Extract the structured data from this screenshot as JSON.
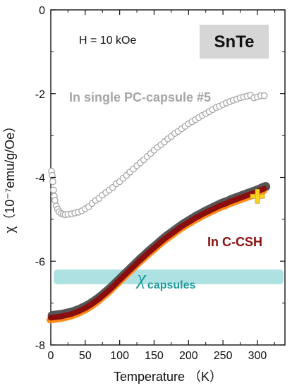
{
  "chart_data": {
    "type": "scatter",
    "xlabel": "Temperature （K）",
    "ylabel": "χ（10⁻⁷emu/g/Oe）",
    "xlim": [
      0,
      340
    ],
    "ylim": [
      -8,
      0
    ],
    "xticks": [
      0,
      50,
      100,
      150,
      200,
      250,
      300
    ],
    "yticks": [
      -8,
      -6,
      -4,
      -2,
      0
    ],
    "grid": false,
    "annotations": {
      "field": "H = 10 kOe",
      "sample": "SnTe",
      "capsule_series": "In single PC-capsule #5",
      "ccsh_series": "In C-CSH",
      "band_symbol": "χ",
      "band_subscript": "capsules"
    },
    "band": {
      "ymin": -6.55,
      "ymax": -6.2,
      "color": "#9fdcdd"
    },
    "colors": {
      "capsule": "#a6a6a6",
      "capsule_text": "#a6a6a6",
      "ccsh_gray": "#555555",
      "ccsh_orange": "#ff8c1a",
      "ccsh_red": "#8b0e0e",
      "ccsh_text": "#8b0e0e",
      "band_text": "#1a9a9a",
      "marker": "#ffd21f",
      "label_box": "#d6d6d6"
    },
    "series": [
      {
        "name": "In single PC-capsule #5",
        "marker": "open-circle",
        "x": [
          1,
          2,
          3,
          4,
          5,
          6,
          8,
          10,
          12,
          15,
          18,
          21,
          25,
          30,
          35,
          40,
          45,
          50,
          55,
          60,
          65,
          70,
          75,
          80,
          85,
          90,
          95,
          100,
          105,
          110,
          115,
          120,
          125,
          130,
          135,
          140,
          145,
          150,
          155,
          160,
          165,
          170,
          175,
          180,
          185,
          190,
          195,
          200,
          205,
          210,
          215,
          220,
          225,
          230,
          235,
          240,
          245,
          250,
          255,
          260,
          265,
          270,
          275,
          280,
          285,
          290,
          295,
          300,
          305,
          310
        ],
        "y": [
          -3.85,
          -3.95,
          -4.1,
          -4.3,
          -4.45,
          -4.55,
          -4.68,
          -4.76,
          -4.82,
          -4.86,
          -4.88,
          -4.89,
          -4.88,
          -4.87,
          -4.85,
          -4.83,
          -4.8,
          -4.75,
          -4.7,
          -4.62,
          -4.55,
          -4.5,
          -4.42,
          -4.36,
          -4.3,
          -4.24,
          -4.15,
          -4.1,
          -4.02,
          -3.95,
          -3.87,
          -3.8,
          -3.72,
          -3.65,
          -3.58,
          -3.5,
          -3.43,
          -3.35,
          -3.28,
          -3.22,
          -3.15,
          -3.08,
          -3.02,
          -2.95,
          -2.9,
          -2.84,
          -2.78,
          -2.72,
          -2.67,
          -2.62,
          -2.57,
          -2.52,
          -2.48,
          -2.43,
          -2.38,
          -2.33,
          -2.3,
          -2.26,
          -2.22,
          -2.19,
          -2.16,
          -2.13,
          -2.1,
          -2.08,
          -2.06,
          -2.04,
          -2.1,
          -2.08,
          -2.05,
          -2.05
        ]
      },
      {
        "name": "In C-CSH",
        "marker": "filled-band",
        "x": [
          0,
          5,
          10,
          15,
          20,
          25,
          30,
          35,
          40,
          45,
          50,
          55,
          60,
          65,
          70,
          75,
          80,
          85,
          90,
          95,
          100,
          105,
          110,
          115,
          120,
          125,
          130,
          135,
          140,
          145,
          150,
          155,
          160,
          165,
          170,
          175,
          180,
          185,
          190,
          195,
          200,
          205,
          210,
          215,
          220,
          225,
          230,
          235,
          240,
          245,
          250,
          255,
          260,
          265,
          270,
          275,
          280,
          285,
          290,
          295,
          300,
          305,
          310
        ],
        "y": [
          -7.35,
          -7.34,
          -7.33,
          -7.32,
          -7.3,
          -7.28,
          -7.26,
          -7.23,
          -7.2,
          -7.16,
          -7.12,
          -7.07,
          -7.02,
          -6.96,
          -6.9,
          -6.83,
          -6.76,
          -6.69,
          -6.61,
          -6.53,
          -6.45,
          -6.37,
          -6.29,
          -6.21,
          -6.13,
          -6.05,
          -5.97,
          -5.9,
          -5.82,
          -5.75,
          -5.68,
          -5.61,
          -5.54,
          -5.47,
          -5.41,
          -5.35,
          -5.29,
          -5.23,
          -5.17,
          -5.12,
          -5.07,
          -5.02,
          -4.97,
          -4.93,
          -4.88,
          -4.84,
          -4.8,
          -4.76,
          -4.72,
          -4.68,
          -4.65,
          -4.62,
          -4.58,
          -4.55,
          -4.52,
          -4.49,
          -4.46,
          -4.43,
          -4.4,
          -4.37,
          -4.34,
          -4.3,
          -4.27
        ]
      }
    ],
    "highlight_point": {
      "x": 300,
      "y": -4.45
    }
  }
}
